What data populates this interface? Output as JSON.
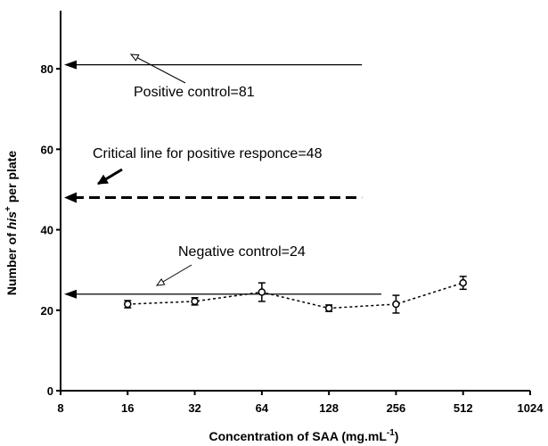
{
  "chart_data": {
    "type": "line",
    "xlabel": "Concentration of SAA (mg.mL",
    "xlabel_sup": "-1",
    "xlabel_end": ")",
    "ylabel_pre": "Number of ",
    "ylabel_his": "his",
    "ylabel_sup": "+",
    "ylabel_post": " per plate",
    "x_scale": "log2",
    "xlim": [
      8,
      1024
    ],
    "ylim": [
      0,
      90
    ],
    "x_ticks": [
      8,
      16,
      32,
      64,
      128,
      256,
      512,
      1024
    ],
    "x_tick_labels": [
      "8",
      "16",
      "32",
      "64",
      "128",
      "256",
      "512",
      "1024"
    ],
    "y_ticks": [
      0,
      20,
      40,
      60,
      80
    ],
    "y_tick_labels": [
      "0",
      "20",
      "40",
      "60",
      "80"
    ],
    "series": [
      {
        "x": [
          16,
          32,
          64,
          128,
          256,
          512
        ],
        "y": [
          21.5,
          22.2,
          24.5,
          20.5,
          21.5,
          26.8
        ],
        "yerr": [
          0.9,
          0.9,
          2.3,
          0.8,
          2.2,
          1.6
        ],
        "line_style": "dotted",
        "marker": "open-circle"
      }
    ],
    "reference_lines": [
      {
        "y": 81,
        "x_end": 180,
        "style": "solid",
        "annotation": "Positive control=81"
      },
      {
        "y": 48,
        "x_end": 180,
        "style": "dashed",
        "annotation": "Critical line for positive responce=48"
      },
      {
        "y": 24,
        "x_end": 220,
        "style": "solid",
        "annotation": "Negative control=24"
      }
    ],
    "grid": false
  }
}
